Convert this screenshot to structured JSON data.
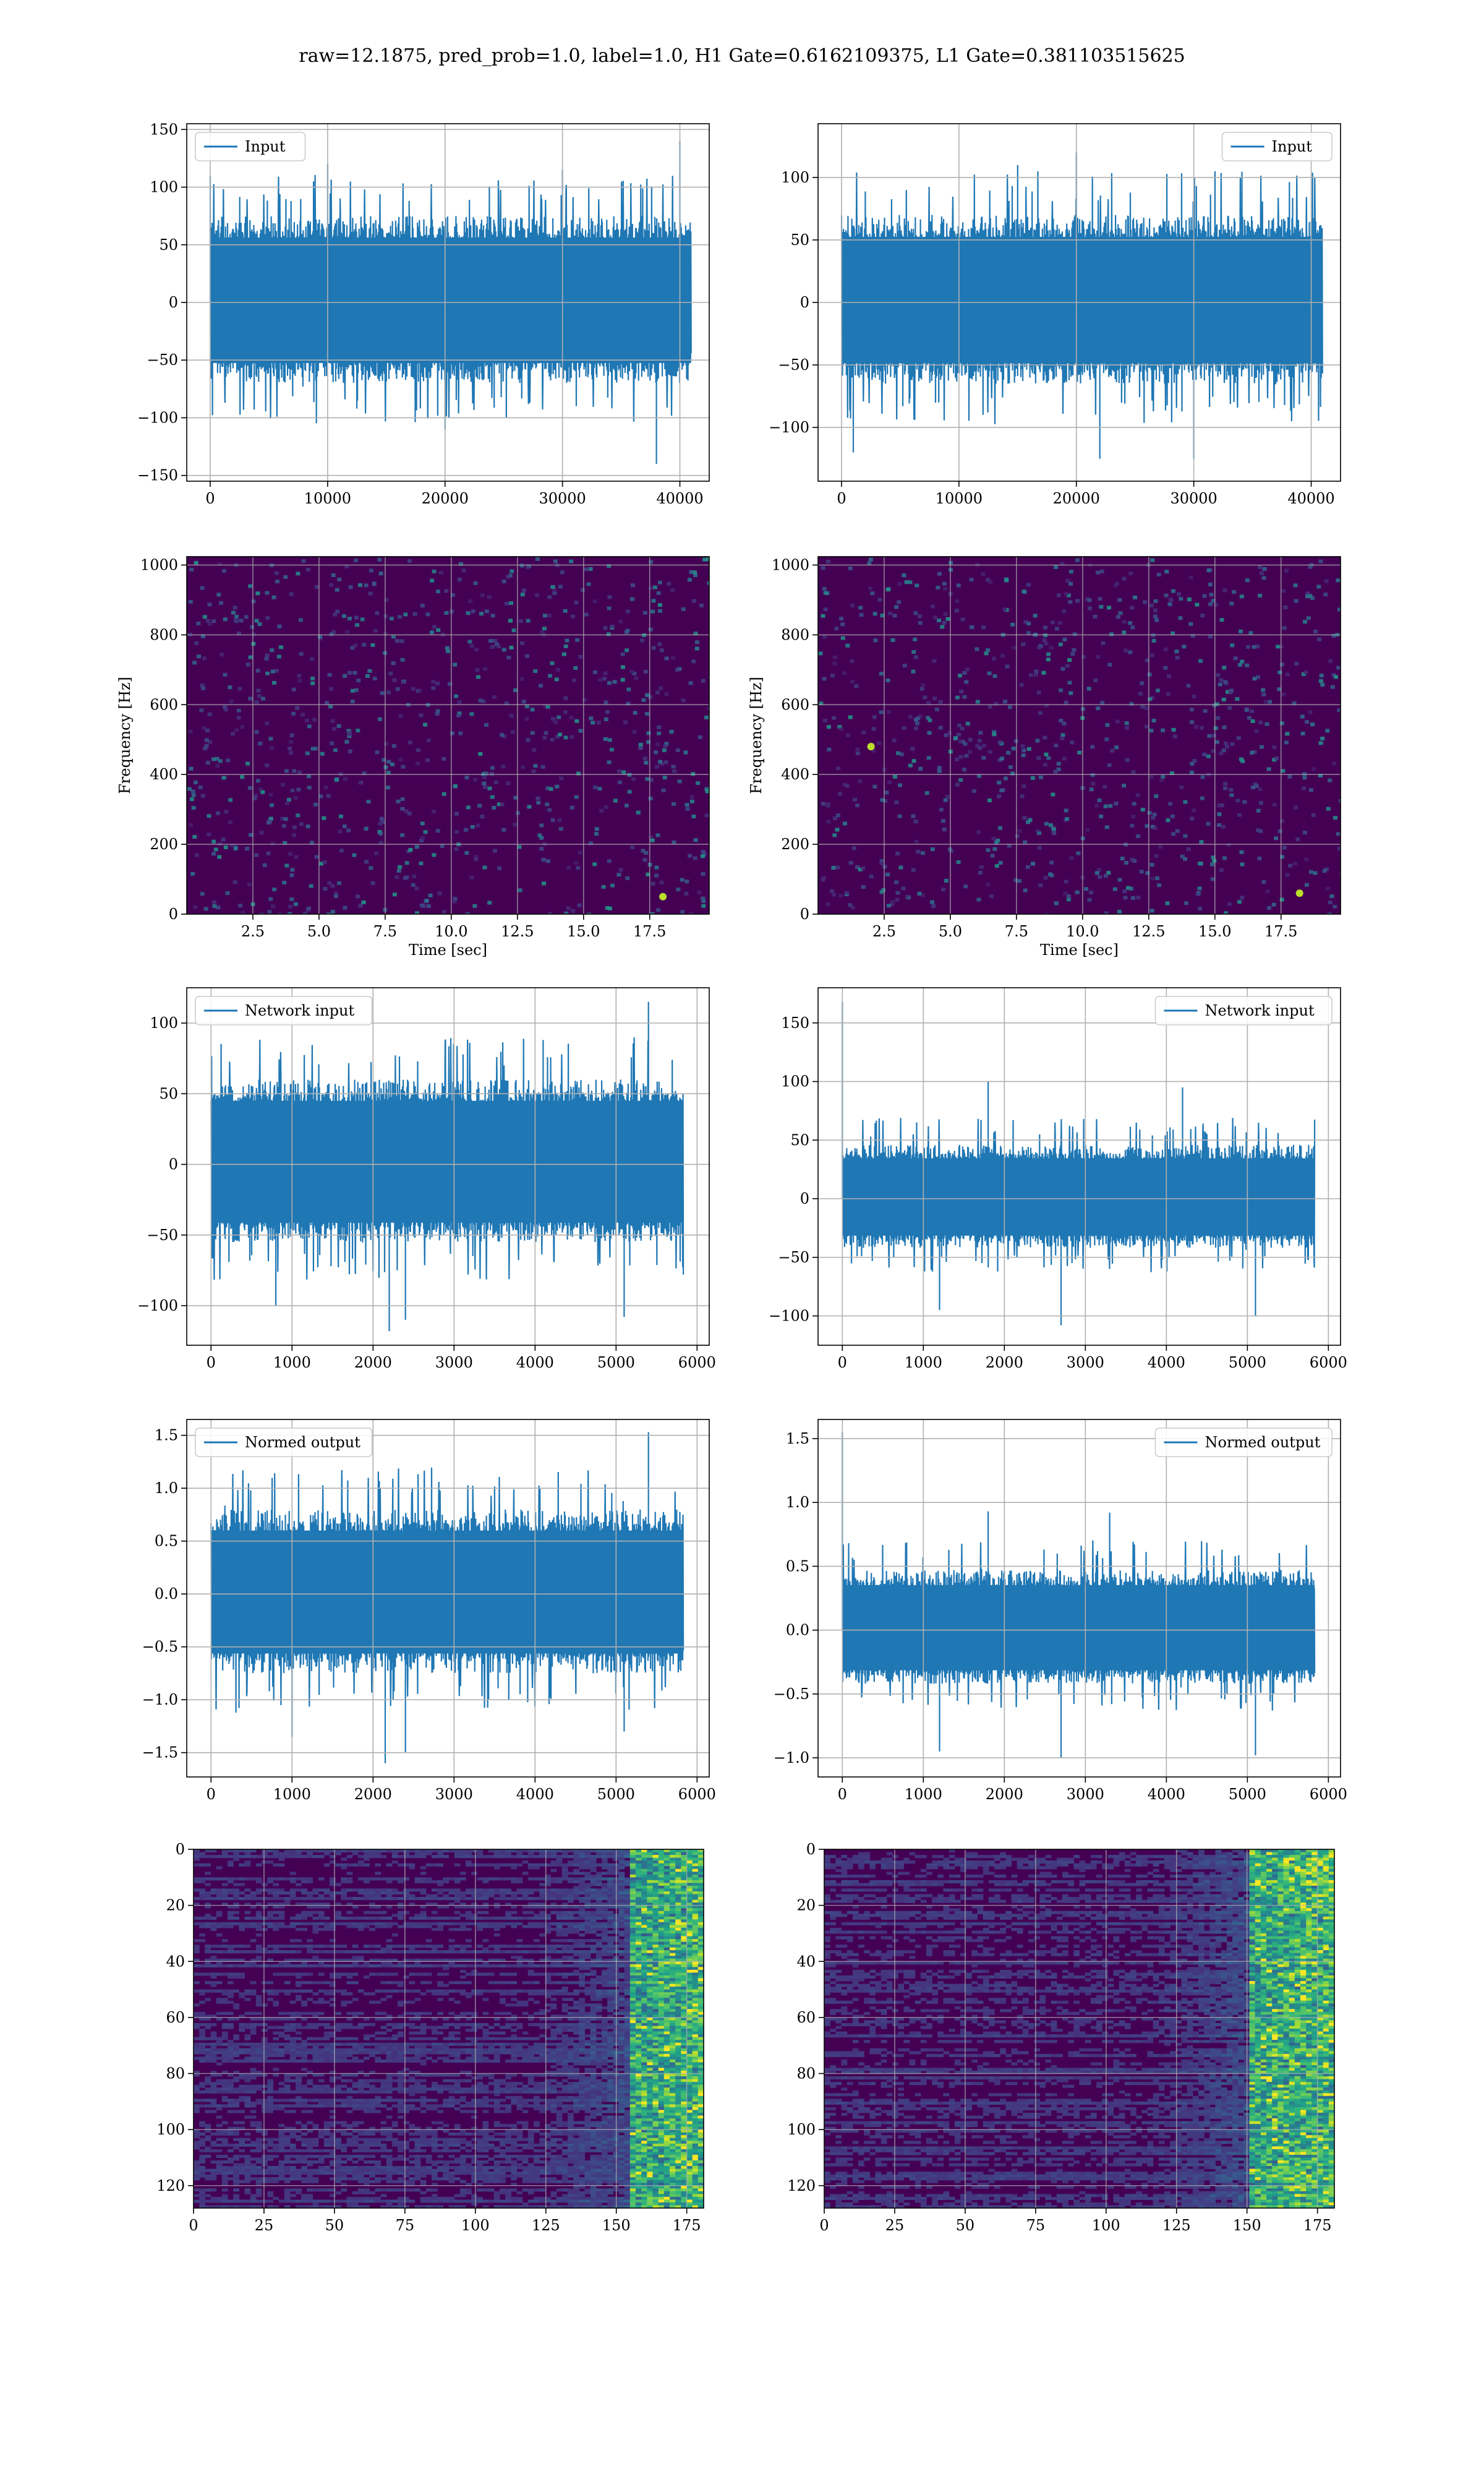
{
  "figure": {
    "suptitle": "raw=12.1875, pred_prob=1.0, label=1.0, H1 Gate=0.6162109375, L1 Gate=0.381103515625"
  },
  "colors": {
    "line": "#1f77b4",
    "grid": "#b0b0b0",
    "spectrogram_bg": "#440154",
    "viridis": [
      "#440154",
      "#482878",
      "#3e4a89",
      "#31688e",
      "#26828e",
      "#1f9e89",
      "#35b779",
      "#6ece58",
      "#b5de2b",
      "#fde725"
    ]
  },
  "chart_data": [
    {
      "type": "line",
      "panel": "row1-left",
      "legend": "Input",
      "legend_loc": "upper-left",
      "xlim": [
        -2000,
        42500
      ],
      "ylim": [
        -155,
        155
      ],
      "xticks": [
        0,
        10000,
        20000,
        30000,
        40000
      ],
      "xtick_labels": [
        "0",
        "10000",
        "20000",
        "30000",
        "40000"
      ],
      "yticks": [
        -150,
        -100,
        -50,
        0,
        50,
        100,
        150
      ],
      "ytick_labels": [
        "−150",
        "−100",
        "−50",
        "0",
        "50",
        "100",
        "150"
      ],
      "x_range": [
        0,
        40960
      ],
      "envelope": [
        -70,
        75
      ],
      "noise_std": 25,
      "spikes": [
        [
          0,
          110
        ],
        [
          40000,
          140
        ],
        [
          38000,
          -140
        ],
        [
          10000,
          120
        ],
        [
          20000,
          -110
        ],
        [
          30000,
          115
        ]
      ]
    },
    {
      "type": "line",
      "panel": "row1-right",
      "legend": "Input",
      "legend_loc": "upper-right",
      "xlim": [
        -2000,
        42500
      ],
      "ylim": [
        -143,
        143
      ],
      "xticks": [
        0,
        10000,
        20000,
        30000,
        40000
      ],
      "xtick_labels": [
        "0",
        "10000",
        "20000",
        "30000",
        "40000"
      ],
      "yticks": [
        -100,
        -50,
        0,
        50,
        100
      ],
      "ytick_labels": [
        "−100",
        "−50",
        "0",
        "50",
        "100"
      ],
      "x_range": [
        0,
        40960
      ],
      "envelope": [
        -65,
        70
      ],
      "noise_std": 23,
      "spikes": [
        [
          30000,
          -125
        ],
        [
          20000,
          120
        ],
        [
          22000,
          -125
        ],
        [
          1000,
          -120
        ],
        [
          15000,
          110
        ]
      ]
    },
    {
      "type": "heatmap",
      "panel": "row2-left",
      "ylabel": "Frequency [Hz]",
      "xlabel": "Time [sec]",
      "xlim": [
        0,
        19.75
      ],
      "ylim": [
        0,
        1024
      ],
      "xticks": [
        2.5,
        5.0,
        7.5,
        10.0,
        12.5,
        15.0,
        17.5
      ],
      "xtick_labels": [
        "2.5",
        "5.0",
        "7.5",
        "10.0",
        "12.5",
        "15.0",
        "17.5"
      ],
      "yticks": [
        0,
        200,
        400,
        600,
        800,
        1000
      ],
      "ytick_labels": [
        "0",
        "200",
        "400",
        "600",
        "800",
        "1000"
      ],
      "hotspots": [
        [
          18.0,
          50
        ]
      ]
    },
    {
      "type": "heatmap",
      "panel": "row2-right",
      "ylabel": "Frequency [Hz]",
      "xlabel": "Time [sec]",
      "xlim": [
        0,
        19.75
      ],
      "ylim": [
        0,
        1024
      ],
      "xticks": [
        2.5,
        5.0,
        7.5,
        10.0,
        12.5,
        15.0,
        17.5
      ],
      "xtick_labels": [
        "2.5",
        "5.0",
        "7.5",
        "10.0",
        "12.5",
        "15.0",
        "17.5"
      ],
      "yticks": [
        0,
        200,
        400,
        600,
        800,
        1000
      ],
      "ytick_labels": [
        "0",
        "200",
        "400",
        "600",
        "800",
        "1000"
      ],
      "hotspots": [
        [
          18.2,
          60
        ],
        [
          2.0,
          480
        ]
      ]
    },
    {
      "type": "line",
      "panel": "row3-left",
      "legend": "Network input",
      "legend_loc": "upper-left",
      "xlim": [
        -300,
        6150
      ],
      "ylim": [
        -128,
        125
      ],
      "xticks": [
        0,
        1000,
        2000,
        3000,
        4000,
        5000,
        6000
      ],
      "xtick_labels": [
        "0",
        "1000",
        "2000",
        "3000",
        "4000",
        "5000",
        "6000"
      ],
      "yticks": [
        -100,
        -50,
        0,
        50,
        100
      ],
      "ytick_labels": [
        "−100",
        "−50",
        "0",
        "50",
        "100"
      ],
      "x_range": [
        0,
        5830
      ],
      "envelope": [
        -55,
        60
      ],
      "noise_std": 20,
      "spikes": [
        [
          5400,
          115
        ],
        [
          2200,
          -118
        ],
        [
          2400,
          -110
        ],
        [
          800,
          -100
        ],
        [
          4100,
          88
        ],
        [
          5100,
          -108
        ]
      ]
    },
    {
      "type": "line",
      "panel": "row3-right",
      "legend": "Network input",
      "legend_loc": "upper-right",
      "xlim": [
        -300,
        6150
      ],
      "ylim": [
        -125,
        180
      ],
      "xticks": [
        0,
        1000,
        2000,
        3000,
        4000,
        5000,
        6000
      ],
      "xtick_labels": [
        "0",
        "1000",
        "2000",
        "3000",
        "4000",
        "5000",
        "6000"
      ],
      "yticks": [
        -100,
        -50,
        0,
        50,
        100,
        150
      ],
      "ytick_labels": [
        "−100",
        "−50",
        "0",
        "50",
        "100",
        "150"
      ],
      "x_range": [
        0,
        5830
      ],
      "envelope": [
        -42,
        46
      ],
      "noise_std": 16,
      "spikes": [
        [
          0,
          168
        ],
        [
          1800,
          100
        ],
        [
          2700,
          -108
        ],
        [
          1200,
          -95
        ],
        [
          4200,
          95
        ],
        [
          5100,
          -100
        ]
      ]
    },
    {
      "type": "line",
      "panel": "row4-left",
      "legend": "Normed output",
      "legend_loc": "upper-left",
      "xlim": [
        -300,
        6150
      ],
      "ylim": [
        -1.73,
        1.65
      ],
      "xticks": [
        0,
        1000,
        2000,
        3000,
        4000,
        5000,
        6000
      ],
      "xtick_labels": [
        "0",
        "1000",
        "2000",
        "3000",
        "4000",
        "5000",
        "6000"
      ],
      "yticks": [
        -1.5,
        -1.0,
        -0.5,
        0.0,
        0.5,
        1.0,
        1.5
      ],
      "ytick_labels": [
        "−1.5",
        "−1.0",
        "−0.5",
        "0.0",
        "0.5",
        "1.0",
        "1.5"
      ],
      "x_range": [
        0,
        5830
      ],
      "envelope": [
        -0.75,
        0.8
      ],
      "noise_std": 0.27,
      "spikes": [
        [
          5400,
          1.53
        ],
        [
          2150,
          -1.6
        ],
        [
          2400,
          -1.5
        ],
        [
          1000,
          -1.35
        ],
        [
          5100,
          -1.3
        ]
      ]
    },
    {
      "type": "line",
      "panel": "row4-right",
      "legend": "Normed output",
      "legend_loc": "upper-right",
      "xlim": [
        -300,
        6150
      ],
      "ylim": [
        -1.15,
        1.65
      ],
      "xticks": [
        0,
        1000,
        2000,
        3000,
        4000,
        5000,
        6000
      ],
      "xtick_labels": [
        "0",
        "1000",
        "2000",
        "3000",
        "4000",
        "5000",
        "6000"
      ],
      "yticks": [
        -1.0,
        -0.5,
        0.0,
        0.5,
        1.0,
        1.5
      ],
      "ytick_labels": [
        "−1.0",
        "−0.5",
        "0.0",
        "0.5",
        "1.0",
        "1.5"
      ],
      "x_range": [
        0,
        5830
      ],
      "envelope": [
        -0.42,
        0.47
      ],
      "noise_std": 0.16,
      "spikes": [
        [
          0,
          1.55
        ],
        [
          1800,
          0.93
        ],
        [
          2700,
          -1.0
        ],
        [
          1200,
          -0.95
        ],
        [
          3300,
          0.92
        ],
        [
          5100,
          -0.98
        ]
      ]
    },
    {
      "type": "heatmap",
      "panel": "row5-left",
      "xlim": [
        0,
        181
      ],
      "ylim": [
        128,
        0
      ],
      "xticks": [
        0,
        25,
        50,
        75,
        100,
        125,
        150,
        175
      ],
      "xtick_labels": [
        "0",
        "25",
        "50",
        "75",
        "100",
        "125",
        "150",
        "175"
      ],
      "yticks": [
        0,
        20,
        40,
        60,
        80,
        100,
        120
      ],
      "ytick_labels": [
        "0",
        "20",
        "40",
        "60",
        "80",
        "100",
        "120"
      ],
      "hot_band": [
        155,
        181
      ]
    },
    {
      "type": "heatmap",
      "panel": "row5-right",
      "xlim": [
        0,
        181
      ],
      "ylim": [
        128,
        0
      ],
      "xticks": [
        0,
        25,
        50,
        75,
        100,
        125,
        150,
        175
      ],
      "xtick_labels": [
        "0",
        "25",
        "50",
        "75",
        "100",
        "125",
        "150",
        "175"
      ],
      "yticks": [
        0,
        20,
        40,
        60,
        80,
        100,
        120
      ],
      "ytick_labels": [
        "0",
        "20",
        "40",
        "60",
        "80",
        "100",
        "120"
      ],
      "hot_band": [
        150,
        181
      ]
    }
  ]
}
